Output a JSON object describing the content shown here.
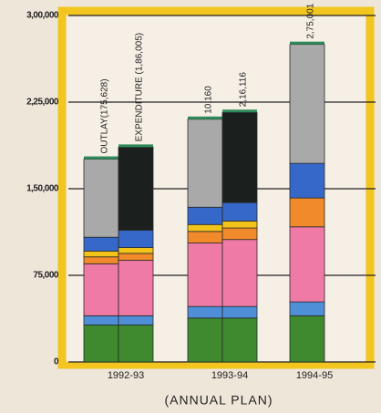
{
  "chart_data": {
    "type": "bar",
    "stacked": true,
    "x_label": "(ANNUAL PLAN)",
    "categories": [
      "1992-93",
      null,
      "1993-94",
      null,
      "1994-95"
    ],
    "annotations": [
      "OUTLAY(175,628)",
      "EXPENDITURE (1,86,005)",
      "10,160",
      "2,16,116",
      "2,75,001"
    ],
    "series": [
      {
        "color": "#3f8a2e",
        "values": [
          32000,
          32000,
          38000,
          38000,
          40000
        ]
      },
      {
        "color": "#4f8fd8",
        "values": [
          8000,
          8000,
          10000,
          10000,
          12000
        ]
      },
      {
        "color": "#f07aa6",
        "values": [
          45000,
          48000,
          55000,
          58000,
          65000
        ]
      },
      {
        "color": "#f08a2a",
        "values": [
          6000,
          6000,
          10000,
          10000,
          25000
        ]
      },
      {
        "color": "#f2c419",
        "values": [
          5000,
          5000,
          6000,
          6000,
          null
        ]
      },
      {
        "color": "#3568c8",
        "values": [
          12000,
          15000,
          15000,
          16000,
          30000
        ]
      },
      {
        "color": "#a9a9a9",
        "values": [
          67628,
          null,
          76160,
          null,
          103001
        ]
      },
      {
        "color": "#1b1f1d",
        "values": [
          null,
          72005,
          null,
          78116,
          null
        ]
      }
    ],
    "ylim": [
      0,
      300000
    ],
    "yticks": [
      0,
      {
        "value": 75000,
        "label": "75,000"
      },
      {
        "value": 150000,
        "label": "1,50,000"
      },
      {
        "value": 225000,
        "label": "2,25,000"
      },
      {
        "value": 300000,
        "label": "3,00,000"
      }
    ],
    "grid": true
  }
}
